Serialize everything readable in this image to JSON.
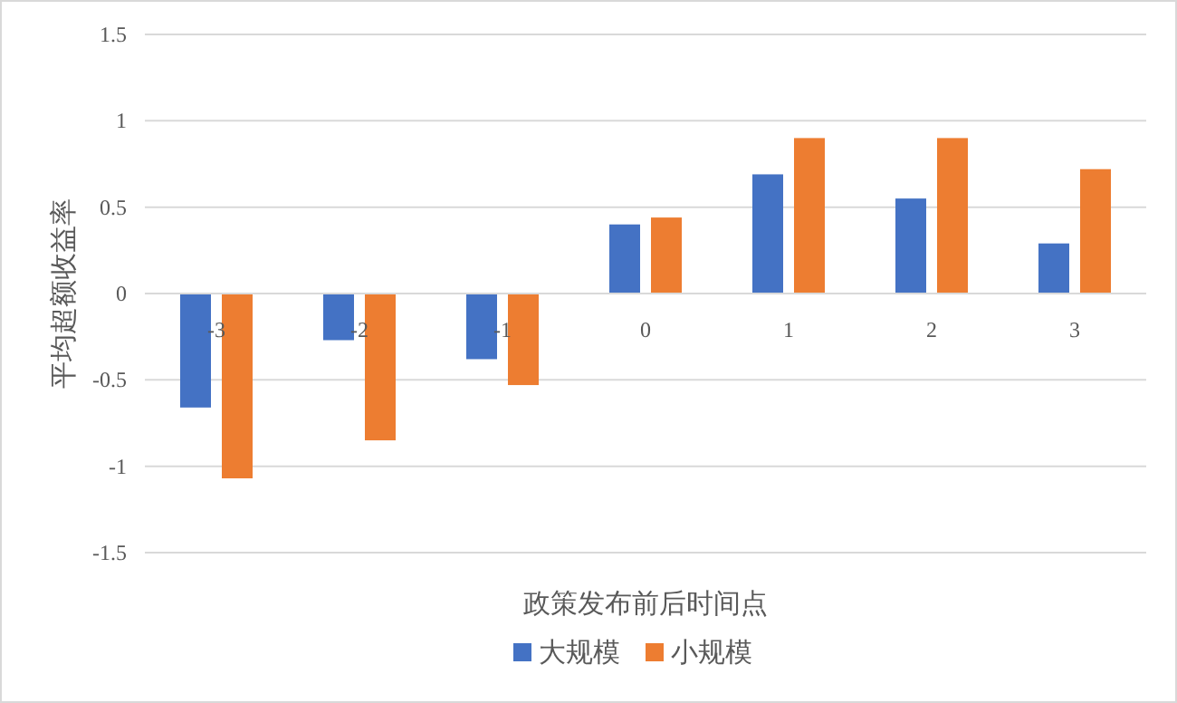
{
  "chart_data": {
    "type": "bar",
    "xlabel": "政策发布前后时间点",
    "ylabel": "平均超额收益率",
    "categories": [
      "-3",
      "-2",
      "-1",
      "0",
      "1",
      "2",
      "3"
    ],
    "series": [
      {
        "name": "大规模",
        "color": "#4472c4",
        "values": [
          -0.66,
          -0.27,
          -0.38,
          0.4,
          0.69,
          0.55,
          0.29
        ]
      },
      {
        "name": "小规模",
        "color": "#ed7d31",
        "values": [
          -1.07,
          -0.85,
          -0.53,
          0.44,
          0.9,
          0.9,
          0.72
        ]
      }
    ],
    "ylim": [
      -1.5,
      1.5
    ],
    "yticks": [
      -1.5,
      -1,
      -0.5,
      0,
      0.5,
      1,
      1.5
    ],
    "grid": "y",
    "legend": "bottom"
  }
}
